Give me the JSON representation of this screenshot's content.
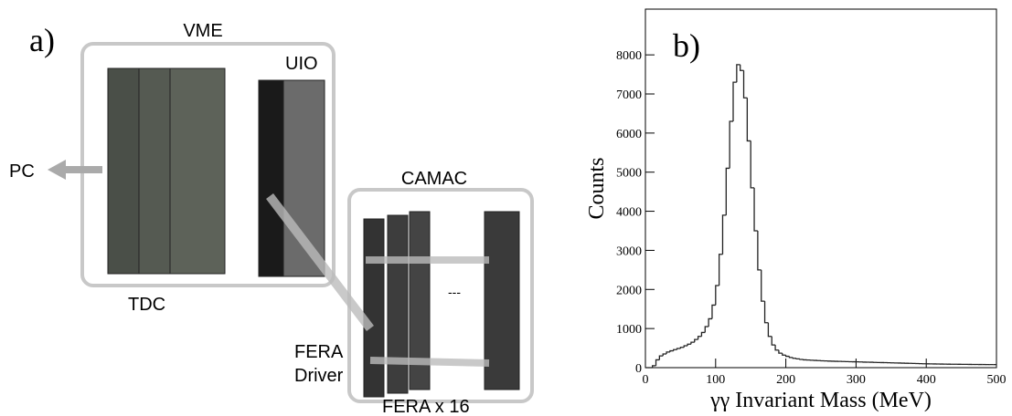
{
  "diagram": {
    "panel_label": "a)",
    "vme_label": "VME",
    "uio_label": "UIO",
    "pc_label": "PC",
    "camac_label": "CAMAC",
    "tdc_label": "TDC",
    "fera_driver_label": [
      "FERA",
      "Driver"
    ],
    "fera_count_label": "FERA x 16",
    "ellipsis": "---"
  },
  "chart_data": {
    "type": "histogram",
    "panel_label": "b)",
    "x_label": "γγ Invariant Mass (MeV)",
    "y_label": "Counts",
    "color": "#222222",
    "bins": [
      0,
      5,
      10,
      15,
      20,
      25,
      30,
      35,
      40,
      45,
      50,
      55,
      60,
      65,
      70,
      75,
      80,
      85,
      90,
      95,
      100,
      105,
      110,
      115,
      120,
      125,
      130,
      135,
      140,
      145,
      150,
      155,
      160,
      165,
      170,
      175,
      180,
      185,
      190,
      195,
      200,
      205,
      210,
      215,
      220,
      225,
      230,
      235,
      240,
      245,
      250,
      255,
      260,
      265,
      270,
      275,
      280,
      285,
      290,
      295,
      300,
      305,
      310,
      315,
      320,
      325,
      330,
      335,
      340,
      345,
      350,
      355,
      360,
      365,
      370,
      375,
      380,
      385,
      390,
      395,
      400,
      405,
      410,
      415,
      420,
      425,
      430,
      435,
      440,
      445,
      450,
      455,
      460,
      465,
      470,
      475,
      480,
      485,
      490,
      495,
      500
    ],
    "values": [
      0,
      0,
      50,
      200,
      300,
      350,
      400,
      430,
      460,
      490,
      520,
      560,
      600,
      650,
      720,
      800,
      900,
      1050,
      1250,
      1600,
      2100,
      2900,
      3900,
      5100,
      6300,
      7300,
      7750,
      7600,
      6900,
      5800,
      4600,
      3500,
      2500,
      1700,
      1150,
      800,
      580,
      450,
      370,
      320,
      290,
      260,
      240,
      225,
      210,
      200,
      195,
      190,
      185,
      180,
      175,
      172,
      168,
      165,
      162,
      160,
      157,
      155,
      152,
      150,
      148,
      145,
      142,
      140,
      138,
      135,
      132,
      130,
      128,
      125,
      122,
      120,
      118,
      115,
      112,
      110,
      108,
      105,
      102,
      100,
      98,
      96,
      95,
      93,
      92,
      90,
      89,
      88,
      87,
      86,
      85,
      84,
      83,
      82,
      81,
      80,
      80,
      79,
      78,
      78
    ],
    "xlim": [
      0,
      500
    ],
    "xticks": [
      0,
      100,
      200,
      300,
      400,
      500
    ],
    "ylim": [
      0,
      9170
    ],
    "yticks": [
      0,
      1000,
      2000,
      3000,
      4000,
      5000,
      6000,
      7000,
      8000
    ]
  }
}
